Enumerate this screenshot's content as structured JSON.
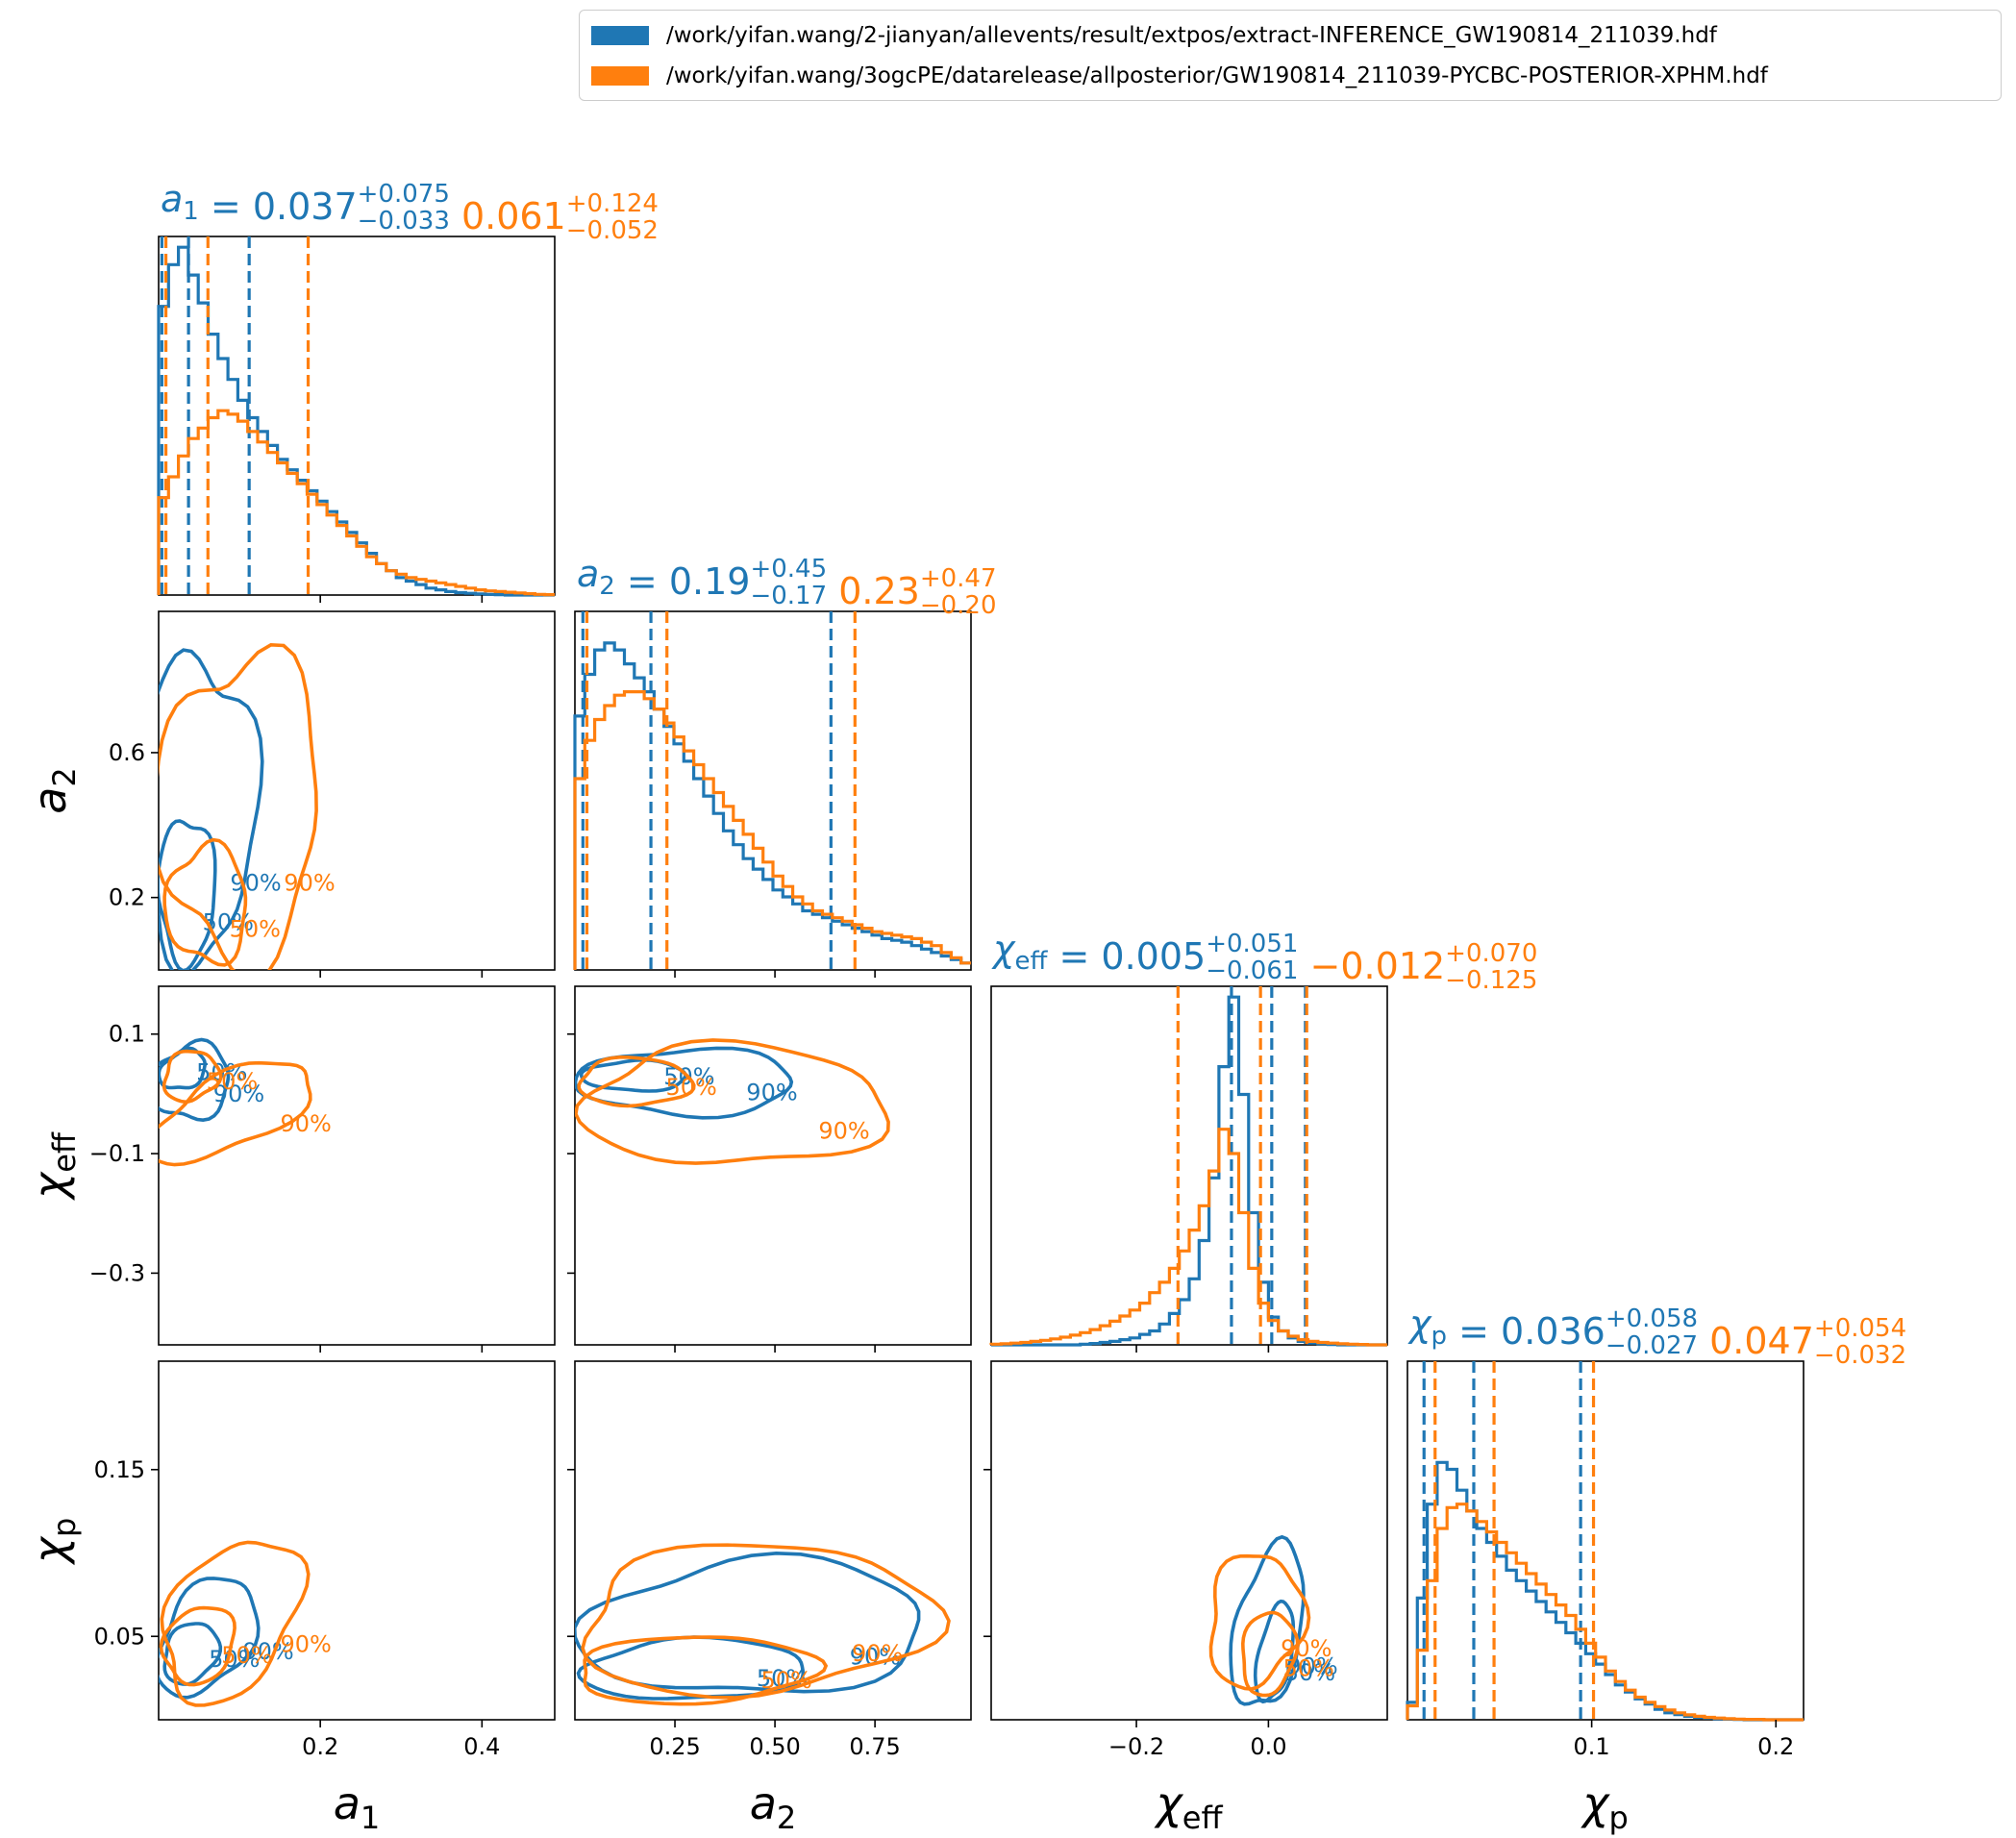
{
  "legend": {
    "items": [
      {
        "label": "/work/yifan.wang/2-jianyan/allevents/result/extpos/extract-INFERENCE_GW190814_211039.hdf",
        "color": "#1f77b4"
      },
      {
        "label": "/work/yifan.wang/3ogcPE/datarelease/allposterior/GW190814_211039-PYCBC-POSTERIOR-XPHM.hdf",
        "color": "#ff7f0e"
      }
    ]
  },
  "chart_data": {
    "type": "corner",
    "colors": {
      "run1": "#1f77b4",
      "run2": "#ff7f0e"
    },
    "parameters": [
      {
        "key": "a1",
        "label": "a",
        "sub": "1",
        "run1": {
          "median": "0.037",
          "plus": "+0.075",
          "minus": "−0.033"
        },
        "run2": {
          "median": "0.061",
          "plus": "+0.124",
          "minus": "−0.052"
        },
        "range": [
          0.0,
          0.49
        ],
        "ticks": [
          0.2,
          0.4
        ],
        "tick_labels": [
          "0.2",
          "0.4"
        ],
        "quantiles_run1": [
          0.004,
          0.037,
          0.112
        ],
        "quantiles_run2": [
          0.009,
          0.061,
          0.185
        ]
      },
      {
        "key": "a2",
        "label": "a",
        "sub": "2",
        "run1": {
          "median": "0.19",
          "plus": "+0.45",
          "minus": "−0.17"
        },
        "run2": {
          "median": "0.23",
          "plus": "+0.47",
          "minus": "−0.20"
        },
        "range": [
          0.0,
          0.99
        ],
        "ticks": [
          0.25,
          0.5,
          0.75
        ],
        "tick_labels": [
          "0.25",
          "0.50",
          "0.75"
        ],
        "quantiles_run1": [
          0.02,
          0.19,
          0.64
        ],
        "quantiles_run2": [
          0.03,
          0.23,
          0.7
        ]
      },
      {
        "key": "chi_eff",
        "label": "χ",
        "sub": "eff",
        "run1": {
          "median": "0.005",
          "plus": "+0.051",
          "minus": "−0.061"
        },
        "run2": {
          "median": "−0.012",
          "plus": "+0.070",
          "minus": "−0.125"
        },
        "range": [
          -0.42,
          0.18
        ],
        "ticks": [
          -0.2,
          0.0
        ],
        "tick_labels": [
          "−0.2",
          "0.0"
        ],
        "quantiles_run1": [
          -0.056,
          0.005,
          0.056
        ],
        "quantiles_run2": [
          -0.137,
          -0.012,
          0.058
        ]
      },
      {
        "key": "chi_p",
        "label": "χ",
        "sub": "p",
        "run1": {
          "median": "0.036",
          "plus": "+0.058",
          "minus": "−0.027"
        },
        "run2": {
          "median": "0.047",
          "plus": "+0.054",
          "minus": "−0.032"
        },
        "range": [
          0.0,
          0.215
        ],
        "ticks": [
          0.1,
          0.2
        ],
        "tick_labels": [
          "0.1",
          "0.2"
        ],
        "quantiles_run1": [
          0.009,
          0.036,
          0.094
        ],
        "quantiles_run2": [
          0.015,
          0.047,
          0.101
        ]
      }
    ],
    "y_axes": {
      "a2": {
        "range": [
          0.0,
          0.99
        ],
        "ticks": [
          0.2,
          0.6
        ],
        "tick_labels": [
          "0.2",
          "0.6"
        ]
      },
      "chi_eff": {
        "range": [
          -0.42,
          0.18
        ],
        "ticks": [
          -0.3,
          -0.1,
          0.1
        ],
        "tick_labels": [
          "−0.3",
          "−0.1",
          "0.1"
        ]
      },
      "chi_p": {
        "range": [
          0.0,
          0.215
        ],
        "ticks": [
          0.05,
          0.15
        ],
        "tick_labels": [
          "0.05",
          "0.15"
        ]
      }
    },
    "histograms": {
      "a1": {
        "run1": [
          0.83,
          0.95,
          1.0,
          0.92,
          0.84,
          0.75,
          0.68,
          0.62,
          0.56,
          0.51,
          0.47,
          0.43,
          0.39,
          0.36,
          0.33,
          0.3,
          0.27,
          0.24,
          0.21,
          0.18,
          0.15,
          0.12,
          0.09,
          0.07,
          0.05,
          0.04,
          0.03,
          0.02,
          0.015,
          0.01,
          0.007,
          0.005,
          0.003,
          0.002,
          0.001,
          0,
          0,
          0,
          0,
          0
        ],
        "run2": [
          0.28,
          0.34,
          0.4,
          0.45,
          0.48,
          0.51,
          0.53,
          0.52,
          0.5,
          0.47,
          0.44,
          0.41,
          0.38,
          0.35,
          0.32,
          0.29,
          0.26,
          0.23,
          0.2,
          0.17,
          0.14,
          0.11,
          0.09,
          0.07,
          0.06,
          0.05,
          0.045,
          0.04,
          0.035,
          0.03,
          0.025,
          0.02,
          0.015,
          0.012,
          0.01,
          0.008,
          0.006,
          0.004,
          0.002,
          0.001
        ]
      },
      "a2": {
        "run1": [
          0.73,
          0.85,
          0.92,
          0.94,
          0.92,
          0.88,
          0.84,
          0.8,
          0.75,
          0.7,
          0.65,
          0.6,
          0.55,
          0.5,
          0.45,
          0.4,
          0.36,
          0.32,
          0.29,
          0.26,
          0.23,
          0.21,
          0.19,
          0.17,
          0.16,
          0.15,
          0.14,
          0.13,
          0.12,
          0.11,
          0.1,
          0.09,
          0.085,
          0.08,
          0.07,
          0.06,
          0.05,
          0.04,
          0.03,
          0.02
        ],
        "run2": [
          0.55,
          0.66,
          0.72,
          0.76,
          0.79,
          0.8,
          0.8,
          0.78,
          0.75,
          0.71,
          0.67,
          0.63,
          0.59,
          0.55,
          0.51,
          0.47,
          0.43,
          0.39,
          0.35,
          0.31,
          0.27,
          0.24,
          0.21,
          0.19,
          0.17,
          0.16,
          0.15,
          0.14,
          0.13,
          0.12,
          0.11,
          0.105,
          0.1,
          0.095,
          0.09,
          0.08,
          0.07,
          0.05,
          0.035,
          0.02
        ]
      },
      "chi_eff": {
        "run1": [
          0,
          0,
          0,
          0,
          0,
          0,
          0,
          0,
          0,
          0.002,
          0.004,
          0.007,
          0.01,
          0.015,
          0.02,
          0.03,
          0.04,
          0.06,
          0.09,
          0.13,
          0.19,
          0.3,
          0.48,
          0.8,
          1.0,
          0.72,
          0.38,
          0.18,
          0.08,
          0.04,
          0.02,
          0.01,
          0.005,
          0.003,
          0.001,
          0,
          0,
          0,
          0,
          0
        ],
        "run2": [
          0.002,
          0.003,
          0.005,
          0.007,
          0.01,
          0.013,
          0.017,
          0.022,
          0.028,
          0.035,
          0.044,
          0.055,
          0.068,
          0.083,
          0.1,
          0.12,
          0.15,
          0.18,
          0.22,
          0.27,
          0.33,
          0.4,
          0.5,
          0.62,
          0.55,
          0.38,
          0.22,
          0.12,
          0.07,
          0.04,
          0.025,
          0.015,
          0.01,
          0.007,
          0.005,
          0.003,
          0.002,
          0.001,
          0,
          0
        ]
      },
      "chi_p": {
        "run1": [
          0.05,
          0.35,
          0.62,
          0.74,
          0.72,
          0.66,
          0.6,
          0.55,
          0.51,
          0.47,
          0.43,
          0.4,
          0.37,
          0.34,
          0.31,
          0.28,
          0.25,
          0.22,
          0.19,
          0.16,
          0.13,
          0.1,
          0.08,
          0.06,
          0.045,
          0.03,
          0.02,
          0.015,
          0.01,
          0.007,
          0.005,
          0.003,
          0.002,
          0.001,
          0,
          0,
          0,
          0,
          0,
          0
        ],
        "run2": [
          0.04,
          0.2,
          0.4,
          0.55,
          0.61,
          0.62,
          0.6,
          0.57,
          0.54,
          0.51,
          0.48,
          0.45,
          0.42,
          0.39,
          0.36,
          0.33,
          0.3,
          0.26,
          0.22,
          0.18,
          0.14,
          0.11,
          0.085,
          0.065,
          0.05,
          0.038,
          0.028,
          0.02,
          0.014,
          0.01,
          0.007,
          0.005,
          0.003,
          0.002,
          0.001,
          0.001,
          0,
          0,
          0,
          0
        ]
      }
    },
    "contour_labels": [
      "50%",
      "90%"
    ]
  }
}
